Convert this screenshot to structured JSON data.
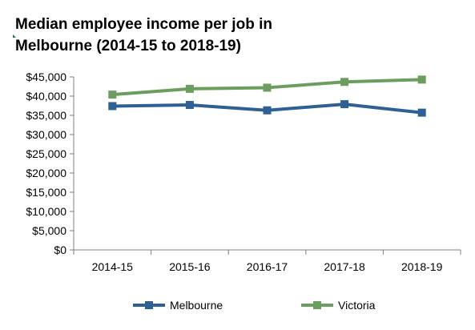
{
  "title_lines": [
    "Median employee income per job in",
    "Melbourne (2014-15 to 2018-19)"
  ],
  "colors": {
    "melbourne": "#2e5f95",
    "victoria": "#6a9d5e",
    "axis": "#7f7f7f"
  },
  "chart_data": {
    "type": "line",
    "title": "Median employee income per job in Melbourne (2014-15 to 2018-19)",
    "xlabel": "",
    "ylabel": "",
    "categories": [
      "2014-15",
      "2015-16",
      "2016-17",
      "2017-18",
      "2018-19"
    ],
    "y_ticks": [
      "$0",
      "$5,000",
      "$10,000",
      "$15,000",
      "$20,000",
      "$25,000",
      "$30,000",
      "$35,000",
      "$40,000",
      "$45,000"
    ],
    "ylim": [
      0,
      45000
    ],
    "y_step": 5000,
    "grid": false,
    "legend_position": "bottom",
    "series": [
      {
        "name": "Melbourne",
        "color": "#2e5f95",
        "values": [
          37400,
          37700,
          36300,
          37900,
          35700
        ]
      },
      {
        "name": "Victoria",
        "color": "#6a9d5e",
        "values": [
          40400,
          41900,
          42200,
          43700,
          44300
        ]
      }
    ]
  }
}
